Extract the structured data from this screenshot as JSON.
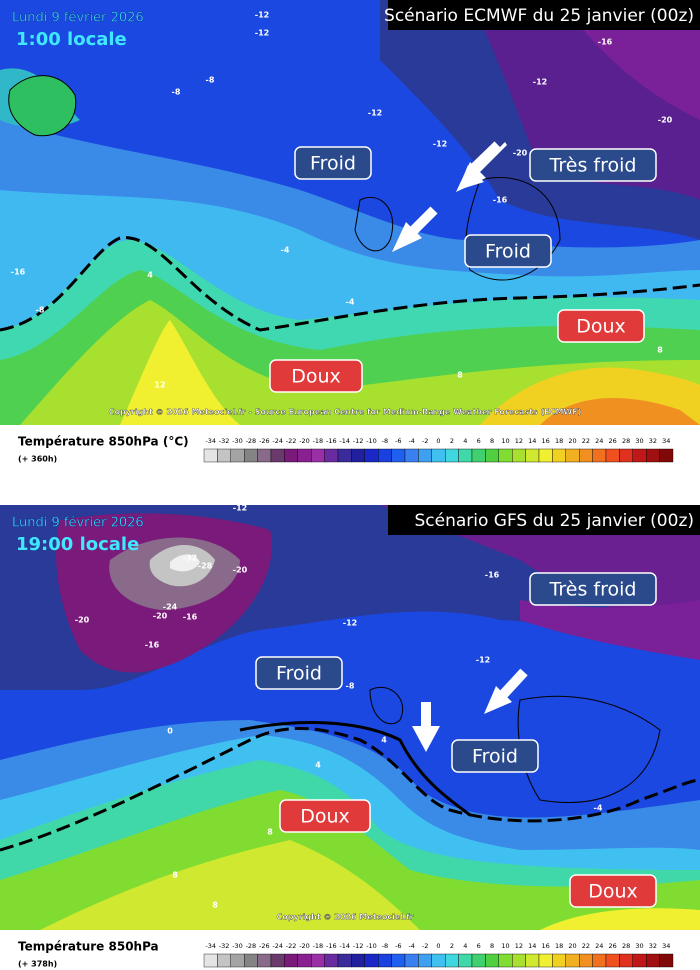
{
  "panels": [
    {
      "title": "Scénario ECMWF du 25 janvier (00z)",
      "date": "Lundi 9 février 2026",
      "time": "1:00 locale",
      "labels": [
        "Froid",
        "Très froid",
        "Froid",
        "Doux",
        "Doux"
      ],
      "contours": [
        "-12",
        "-12",
        "-16",
        "-12",
        "-12",
        "-12",
        "-20",
        "-16",
        "-20",
        "-8",
        "-8",
        "-4",
        "-16",
        "-8",
        "4",
        "-4",
        "12",
        "8",
        "8"
      ],
      "copyright": "Copyright © 2026 Meteociel.fr - Source European Centre for Medium-Range Weather Forecasts (ECMWF)",
      "legend": {
        "title": "Température 850hPa (°C)",
        "lead": "(+ 360h)"
      }
    },
    {
      "title": "Scénario GFS du 25 janvier (00z)",
      "date": "Lundi 9 février 2026",
      "time": "19:00 locale",
      "labels": [
        "Très froid",
        "Froid",
        "Froid",
        "Doux",
        "Doux"
      ],
      "contours": [
        "-12",
        "-32",
        "-28",
        "-20",
        "-24",
        "-20",
        "-16",
        "-20",
        "-16",
        "-12",
        "-16",
        "-12",
        "-8",
        "0",
        "4",
        "4",
        "-4",
        "8",
        "8",
        "8"
      ],
      "copyright": "Copyright © 2026 Meteociel.fr",
      "legend": {
        "title": "Température 850hPa",
        "lead": "(+ 378h)"
      }
    }
  ],
  "scale": {
    "ticks": [
      -34,
      -32,
      -30,
      -28,
      -26,
      -24,
      -22,
      -20,
      -18,
      -16,
      -14,
      -12,
      -10,
      -8,
      -6,
      -4,
      -2,
      0,
      2,
      4,
      6,
      8,
      10,
      12,
      14,
      16,
      18,
      20,
      22,
      24,
      26,
      28,
      30,
      32,
      34
    ],
    "colors": [
      "#e4e4e4",
      "#c4c4c4",
      "#a4a4a4",
      "#848484",
      "#8a6a8a",
      "#6a3a6a",
      "#7a1a7a",
      "#8a2090",
      "#9a30a8",
      "#6a2aa0",
      "#3a2a9a",
      "#2020a0",
      "#1a28c8",
      "#1a40e0",
      "#2060f0",
      "#3a80f0",
      "#40a0f0",
      "#40c0f0",
      "#40d8e0",
      "#40d8a8",
      "#40d070",
      "#50d040",
      "#80dc30",
      "#a8e030",
      "#d0e830",
      "#f0f030",
      "#f0d020",
      "#f0b020",
      "#f09020",
      "#f07020",
      "#f05020",
      "#e03020",
      "#c01818",
      "#a01010",
      "#800808"
    ]
  }
}
